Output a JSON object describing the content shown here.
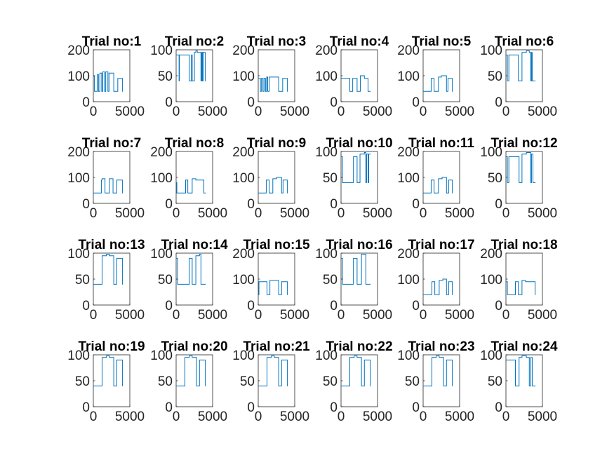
{
  "figure": {
    "background": "#ffffff",
    "axes_color": "#262626",
    "line_color": "#0072bd"
  },
  "chart_data": [
    {
      "type": "line",
      "title": "Trial no:1",
      "xlim": [
        0,
        5000
      ],
      "ylim": [
        0,
        200
      ],
      "xticks": [
        "0",
        "5000"
      ],
      "yticks": [
        "0",
        "100",
        "200"
      ],
      "x": [
        0,
        150,
        150,
        550,
        550,
        700,
        700,
        900,
        900,
        1150,
        1150,
        1300,
        1300,
        1550,
        1550,
        1700,
        1700,
        2000,
        2000,
        2150,
        2150,
        2500,
        2500,
        2800,
        2800,
        3200,
        3200,
        3350,
        3350,
        3600,
        3600,
        4000,
        4000,
        4050
      ],
      "y": [
        100,
        100,
        40,
        40,
        105,
        105,
        40,
        40,
        110,
        110,
        40,
        40,
        115,
        115,
        40,
        40,
        115,
        115,
        40,
        40,
        110,
        110,
        110,
        110,
        40,
        40,
        40,
        40,
        90,
        90,
        90,
        90,
        40,
        40
      ]
    },
    {
      "type": "line",
      "title": "Trial no:2",
      "xlim": [
        0,
        5000
      ],
      "ylim": [
        0,
        100
      ],
      "xticks": [
        "0",
        "5000"
      ],
      "yticks": [
        "0",
        "50",
        "100"
      ],
      "x": [
        0,
        400,
        400,
        450,
        450,
        1800,
        1800,
        2100,
        2100,
        2200,
        2200,
        2500,
        2500,
        2700,
        2700,
        2900,
        2900,
        3400,
        3400,
        3500,
        3500,
        3600,
        3600,
        3700,
        3700,
        4000,
        4000,
        4050
      ],
      "y": [
        90,
        90,
        40,
        40,
        90,
        90,
        40,
        40,
        90,
        90,
        40,
        40,
        95,
        95,
        98,
        98,
        95,
        95,
        40,
        40,
        95,
        95,
        40,
        40,
        95,
        95,
        40,
        40
      ]
    },
    {
      "type": "line",
      "title": "Trial no:3",
      "xlim": [
        0,
        5000
      ],
      "ylim": [
        0,
        200
      ],
      "xticks": [
        "0",
        "5000"
      ],
      "yticks": [
        "0",
        "100",
        "200"
      ],
      "x": [
        0,
        300,
        300,
        450,
        450,
        650,
        650,
        800,
        800,
        1000,
        1000,
        1150,
        1150,
        1300,
        1300,
        1500,
        1500,
        2000,
        2000,
        2300,
        2300,
        2800,
        2800,
        3200,
        3200,
        3350,
        3350,
        4000,
        4000,
        4050
      ],
      "y": [
        90,
        90,
        40,
        40,
        90,
        90,
        40,
        40,
        90,
        90,
        40,
        40,
        95,
        95,
        40,
        40,
        95,
        95,
        95,
        95,
        95,
        95,
        40,
        40,
        40,
        40,
        90,
        90,
        40,
        40
      ]
    },
    {
      "type": "line",
      "title": "Trial no:4",
      "xlim": [
        0,
        5000
      ],
      "ylim": [
        0,
        200
      ],
      "xticks": [
        "0",
        "5000"
      ],
      "yticks": [
        "0",
        "100",
        "200"
      ],
      "x": [
        0,
        1200,
        1200,
        1600,
        1600,
        2200,
        2200,
        2650,
        2650,
        3200,
        3200,
        3700,
        3700,
        4000,
        4000,
        4050
      ],
      "y": [
        90,
        90,
        40,
        40,
        90,
        90,
        40,
        40,
        100,
        100,
        90,
        90,
        40,
        40,
        40,
        40
      ]
    },
    {
      "type": "line",
      "title": "Trial no:5",
      "xlim": [
        0,
        5000
      ],
      "ylim": [
        0,
        200
      ],
      "xticks": [
        "0",
        "5000"
      ],
      "yticks": [
        "0",
        "100",
        "200"
      ],
      "x": [
        0,
        1100,
        1100,
        1500,
        1500,
        2100,
        2100,
        2500,
        2500,
        3200,
        3200,
        3400,
        3400,
        4000,
        4000,
        4050
      ],
      "y": [
        40,
        40,
        90,
        90,
        40,
        40,
        95,
        95,
        100,
        100,
        40,
        40,
        90,
        90,
        40,
        40
      ]
    },
    {
      "type": "line",
      "title": "Trial no:6",
      "xlim": [
        0,
        5000
      ],
      "ylim": [
        0,
        100
      ],
      "xticks": [
        "0",
        "5000"
      ],
      "yticks": [
        "0",
        "50",
        "100"
      ],
      "x": [
        0,
        200,
        200,
        400,
        400,
        1700,
        1700,
        2200,
        2200,
        2800,
        2800,
        3200,
        3200,
        3400,
        3400,
        3500,
        3500,
        3600,
        3600,
        4000,
        4000,
        4050
      ],
      "y": [
        90,
        90,
        40,
        40,
        90,
        90,
        40,
        40,
        95,
        95,
        98,
        98,
        95,
        95,
        40,
        40,
        95,
        95,
        40,
        40,
        40,
        40
      ]
    },
    {
      "type": "line",
      "title": "Trial no:7",
      "xlim": [
        0,
        5000
      ],
      "ylim": [
        0,
        200
      ],
      "xticks": [
        "0",
        "5000"
      ],
      "yticks": [
        "0",
        "100",
        "200"
      ],
      "x": [
        0,
        1100,
        1100,
        1200,
        1200,
        1600,
        1600,
        2200,
        2200,
        2700,
        2700,
        3200,
        3200,
        4000,
        4000,
        4050
      ],
      "y": [
        40,
        40,
        90,
        90,
        95,
        95,
        40,
        40,
        95,
        95,
        40,
        40,
        90,
        90,
        40,
        40
      ]
    },
    {
      "type": "line",
      "title": "Trial no:8",
      "xlim": [
        0,
        5000
      ],
      "ylim": [
        0,
        200
      ],
      "xticks": [
        "0",
        "5000"
      ],
      "yticks": [
        "0",
        "100",
        "200"
      ],
      "x": [
        0,
        100,
        100,
        1300,
        1300,
        1600,
        1600,
        2200,
        2200,
        2700,
        2700,
        3200,
        3200,
        3800,
        3800,
        4050
      ],
      "y": [
        80,
        80,
        40,
        40,
        90,
        90,
        40,
        40,
        95,
        95,
        90,
        90,
        90,
        90,
        40,
        40
      ]
    },
    {
      "type": "line",
      "title": "Trial no:9",
      "xlim": [
        0,
        5000
      ],
      "ylim": [
        0,
        200
      ],
      "xticks": [
        "0",
        "5000"
      ],
      "yticks": [
        "0",
        "100",
        "200"
      ],
      "x": [
        0,
        1100,
        1100,
        1500,
        1500,
        2000,
        2000,
        2500,
        2500,
        3200,
        3200,
        3400,
        3400,
        4000,
        4000,
        4050
      ],
      "y": [
        40,
        40,
        90,
        90,
        40,
        40,
        95,
        95,
        100,
        100,
        40,
        40,
        90,
        90,
        40,
        40
      ]
    },
    {
      "type": "line",
      "title": "Trial no:10",
      "xlim": [
        0,
        5000
      ],
      "ylim": [
        0,
        100
      ],
      "xticks": [
        "0",
        "5000"
      ],
      "yticks": [
        "0",
        "50",
        "100"
      ],
      "x": [
        0,
        200,
        200,
        1700,
        1700,
        2200,
        2200,
        2600,
        2600,
        3200,
        3200,
        3400,
        3400,
        3500,
        3500,
        3700,
        3700,
        3800,
        3800,
        4050
      ],
      "y": [
        90,
        90,
        40,
        40,
        90,
        90,
        40,
        40,
        95,
        95,
        98,
        98,
        40,
        40,
        95,
        95,
        40,
        40,
        95,
        95
      ]
    },
    {
      "type": "line",
      "title": "Trial no:11",
      "xlim": [
        0,
        5000
      ],
      "ylim": [
        0,
        200
      ],
      "xticks": [
        "0",
        "5000"
      ],
      "yticks": [
        "0",
        "100",
        "200"
      ],
      "x": [
        0,
        1100,
        1100,
        1500,
        1500,
        2100,
        2100,
        2600,
        2600,
        3200,
        3200,
        3500,
        3500,
        4000,
        4000,
        4050
      ],
      "y": [
        40,
        40,
        90,
        90,
        40,
        40,
        95,
        95,
        100,
        100,
        40,
        40,
        90,
        90,
        40,
        40
      ]
    },
    {
      "type": "line",
      "title": "Trial no:12",
      "xlim": [
        0,
        5000
      ],
      "ylim": [
        0,
        100
      ],
      "xticks": [
        "0",
        "5000"
      ],
      "yticks": [
        "0",
        "50",
        "100"
      ],
      "x": [
        0,
        200,
        200,
        400,
        400,
        1800,
        1800,
        2200,
        2200,
        2800,
        2800,
        3400,
        3400,
        3500,
        3500,
        3700,
        3700,
        3800,
        3800,
        4050
      ],
      "y": [
        90,
        90,
        40,
        40,
        90,
        90,
        40,
        40,
        95,
        95,
        98,
        98,
        40,
        40,
        95,
        95,
        40,
        40,
        40,
        40
      ]
    },
    {
      "type": "line",
      "title": "Trial no:13",
      "xlim": [
        0,
        5000
      ],
      "ylim": [
        0,
        100
      ],
      "xticks": [
        "0",
        "5000"
      ],
      "yticks": [
        "0",
        "50",
        "100"
      ],
      "x": [
        0,
        1200,
        1200,
        1800,
        1800,
        2200,
        2200,
        2800,
        2800,
        3200,
        3200,
        4000,
        4000,
        4050
      ],
      "y": [
        40,
        40,
        95,
        95,
        98,
        98,
        95,
        95,
        40,
        40,
        90,
        90,
        40,
        40
      ]
    },
    {
      "type": "line",
      "title": "Trial no:14",
      "xlim": [
        0,
        5000
      ],
      "ylim": [
        0,
        100
      ],
      "xticks": [
        "0",
        "5000"
      ],
      "yticks": [
        "0",
        "50",
        "100"
      ],
      "x": [
        0,
        200,
        200,
        1800,
        1800,
        2200,
        2200,
        2700,
        2700,
        3200,
        3200,
        3400,
        3400,
        3600,
        3600,
        4050
      ],
      "y": [
        90,
        90,
        40,
        40,
        90,
        90,
        40,
        40,
        95,
        95,
        98,
        98,
        40,
        40,
        40,
        40
      ]
    },
    {
      "type": "line",
      "title": "Trial no:15",
      "xlim": [
        0,
        5000
      ],
      "ylim": [
        0,
        200
      ],
      "xticks": [
        "0",
        "5000"
      ],
      "yticks": [
        "0",
        "100",
        "200"
      ],
      "x": [
        0,
        100,
        100,
        1200,
        1200,
        1600,
        1600,
        2200,
        2200,
        2800,
        2800,
        3200,
        3200,
        4000,
        4000,
        4050
      ],
      "y": [
        40,
        40,
        90,
        90,
        40,
        40,
        95,
        95,
        95,
        95,
        40,
        40,
        90,
        90,
        40,
        40
      ]
    },
    {
      "type": "line",
      "title": "Trial no:16",
      "xlim": [
        0,
        5000
      ],
      "ylim": [
        0,
        100
      ],
      "xticks": [
        "0",
        "5000"
      ],
      "yticks": [
        "0",
        "50",
        "100"
      ],
      "x": [
        0,
        200,
        200,
        1700,
        1700,
        2200,
        2200,
        2800,
        2800,
        3400,
        3400,
        3600,
        3600,
        4050
      ],
      "y": [
        90,
        90,
        40,
        40,
        90,
        90,
        40,
        40,
        98,
        98,
        40,
        40,
        40,
        40
      ]
    },
    {
      "type": "line",
      "title": "Trial no:17",
      "xlim": [
        0,
        5000
      ],
      "ylim": [
        0,
        200
      ],
      "xticks": [
        "0",
        "5000"
      ],
      "yticks": [
        "0",
        "100",
        "200"
      ],
      "x": [
        0,
        1200,
        1200,
        1600,
        1600,
        2200,
        2200,
        2700,
        2700,
        3200,
        3200,
        3500,
        3500,
        4000,
        4000,
        4050
      ],
      "y": [
        40,
        40,
        90,
        90,
        40,
        40,
        95,
        95,
        100,
        100,
        40,
        40,
        90,
        90,
        40,
        40
      ]
    },
    {
      "type": "line",
      "title": "Trial no:18",
      "xlim": [
        0,
        5000
      ],
      "ylim": [
        0,
        200
      ],
      "xticks": [
        "0",
        "5000"
      ],
      "yticks": [
        "0",
        "100",
        "200"
      ],
      "x": [
        0,
        200,
        200,
        1300,
        1300,
        1700,
        1700,
        2200,
        2200,
        2700,
        2700,
        3200,
        3200,
        4000,
        4000,
        4050
      ],
      "y": [
        90,
        90,
        40,
        40,
        90,
        90,
        40,
        40,
        95,
        95,
        90,
        90,
        90,
        90,
        40,
        40
      ]
    },
    {
      "type": "line",
      "title": "Trial no:19",
      "xlim": [
        0,
        5000
      ],
      "ylim": [
        0,
        100
      ],
      "xticks": [
        "0",
        "5000"
      ],
      "yticks": [
        "0",
        "50",
        "100"
      ],
      "x": [
        0,
        1200,
        1200,
        1800,
        1800,
        2200,
        2200,
        2800,
        2800,
        3200,
        3200,
        4000,
        4000,
        4050
      ],
      "y": [
        40,
        40,
        95,
        95,
        98,
        98,
        95,
        95,
        40,
        40,
        90,
        90,
        40,
        40
      ]
    },
    {
      "type": "line",
      "title": "Trial no:20",
      "xlim": [
        0,
        5000
      ],
      "ylim": [
        0,
        100
      ],
      "xticks": [
        "0",
        "5000"
      ],
      "yticks": [
        "0",
        "50",
        "100"
      ],
      "x": [
        0,
        1200,
        1200,
        1800,
        1800,
        2200,
        2200,
        2800,
        2800,
        3200,
        3200,
        4000,
        4000,
        4050
      ],
      "y": [
        40,
        40,
        95,
        95,
        98,
        98,
        95,
        95,
        40,
        40,
        90,
        90,
        40,
        40
      ]
    },
    {
      "type": "line",
      "title": "Trial no:21",
      "xlim": [
        0,
        5000
      ],
      "ylim": [
        0,
        100
      ],
      "xticks": [
        "0",
        "5000"
      ],
      "yticks": [
        "0",
        "50",
        "100"
      ],
      "x": [
        0,
        1200,
        1200,
        1800,
        1800,
        2200,
        2200,
        2800,
        2800,
        3200,
        3200,
        4000,
        4000,
        4050
      ],
      "y": [
        40,
        40,
        95,
        95,
        98,
        98,
        95,
        95,
        40,
        40,
        90,
        90,
        40,
        40
      ]
    },
    {
      "type": "line",
      "title": "Trial no:22",
      "xlim": [
        0,
        5000
      ],
      "ylim": [
        0,
        100
      ],
      "xticks": [
        "0",
        "5000"
      ],
      "yticks": [
        "0",
        "50",
        "100"
      ],
      "x": [
        0,
        1200,
        1200,
        1800,
        1800,
        2200,
        2200,
        2800,
        2800,
        3200,
        3200,
        4000,
        4000,
        4050
      ],
      "y": [
        40,
        40,
        95,
        95,
        98,
        98,
        95,
        95,
        40,
        40,
        90,
        90,
        40,
        40
      ]
    },
    {
      "type": "line",
      "title": "Trial no:23",
      "xlim": [
        0,
        5000
      ],
      "ylim": [
        0,
        100
      ],
      "xticks": [
        "0",
        "5000"
      ],
      "yticks": [
        "0",
        "50",
        "100"
      ],
      "x": [
        0,
        1200,
        1200,
        1800,
        1800,
        2200,
        2200,
        2800,
        2800,
        3200,
        3200,
        4000,
        4000,
        4050
      ],
      "y": [
        40,
        40,
        95,
        95,
        98,
        98,
        95,
        95,
        40,
        40,
        90,
        90,
        40,
        40
      ]
    },
    {
      "type": "line",
      "title": "Trial no:24",
      "xlim": [
        0,
        5000
      ],
      "ylim": [
        0,
        100
      ],
      "xticks": [
        "0",
        "5000"
      ],
      "yticks": [
        "0",
        "50",
        "100"
      ],
      "x": [
        0,
        200,
        200,
        1300,
        1300,
        1800,
        1800,
        2200,
        2200,
        2800,
        2800,
        3200,
        3200,
        3400,
        3400,
        3600,
        3600,
        3800,
        3800,
        4050
      ],
      "y": [
        90,
        90,
        90,
        90,
        40,
        40,
        95,
        95,
        98,
        98,
        95,
        95,
        40,
        40,
        95,
        95,
        40,
        40,
        40,
        40
      ]
    }
  ]
}
